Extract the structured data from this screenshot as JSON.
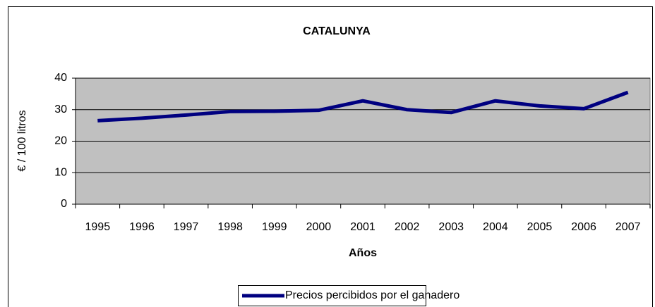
{
  "chart_data": {
    "type": "line",
    "title": "CATALUNYA",
    "x_label": "Años",
    "y_label": "€ / 100 litros",
    "categories": [
      "1995",
      "1996",
      "1997",
      "1998",
      "1999",
      "2000",
      "2001",
      "2002",
      "2003",
      "2004",
      "2005",
      "2006",
      "2007"
    ],
    "series": [
      {
        "name": "Precios percibidos por el ganadero",
        "color": "#000080",
        "values": [
          26.5,
          27.3,
          28.3,
          29.4,
          29.5,
          29.8,
          32.8,
          30.0,
          29.1,
          32.8,
          31.2,
          30.3,
          35.5
        ]
      }
    ],
    "ylim": [
      0,
      40
    ],
    "yticks": [
      0,
      10,
      20,
      30,
      40
    ],
    "grid": true,
    "legend": "bottom"
  }
}
